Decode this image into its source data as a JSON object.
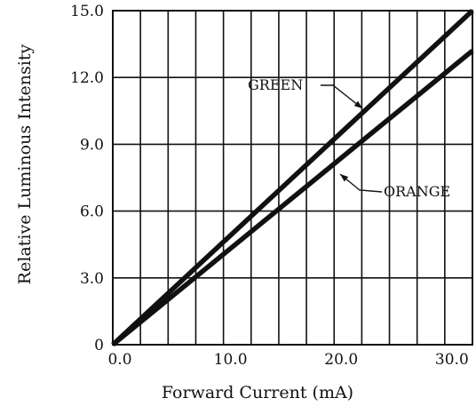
{
  "chart_data": {
    "type": "line",
    "title": "",
    "xlabel": "Forward Current (mA)",
    "ylabel": "Relative Luminous Intensity",
    "xlim": [
      0,
      32.5
    ],
    "ylim": [
      0,
      15
    ],
    "x_ticks": [
      0,
      10,
      20,
      30
    ],
    "x_tick_labels": [
      "0.0",
      "10.0",
      "20.0",
      "30.0"
    ],
    "y_ticks": [
      0,
      3,
      6,
      9,
      12,
      15
    ],
    "y_tick_labels": [
      "0",
      "3.0",
      "6.0",
      "9.0",
      "12.0",
      "15.0"
    ],
    "grid": true,
    "x_grid_step": 2.5,
    "y_grid_step": 3,
    "series": [
      {
        "name": "GREEN",
        "x": [
          0,
          32.5
        ],
        "y": [
          0,
          15.0
        ]
      },
      {
        "name": "ORANGE",
        "x": [
          0,
          32.5
        ],
        "y": [
          0,
          13.2
        ]
      }
    ],
    "annotations": [
      {
        "text": "GREEN",
        "series": "GREEN"
      },
      {
        "text": "ORANGE",
        "series": "ORANGE"
      }
    ],
    "colors": {
      "line": "#111111",
      "grid": "#111111",
      "background": "#ffffff"
    }
  }
}
